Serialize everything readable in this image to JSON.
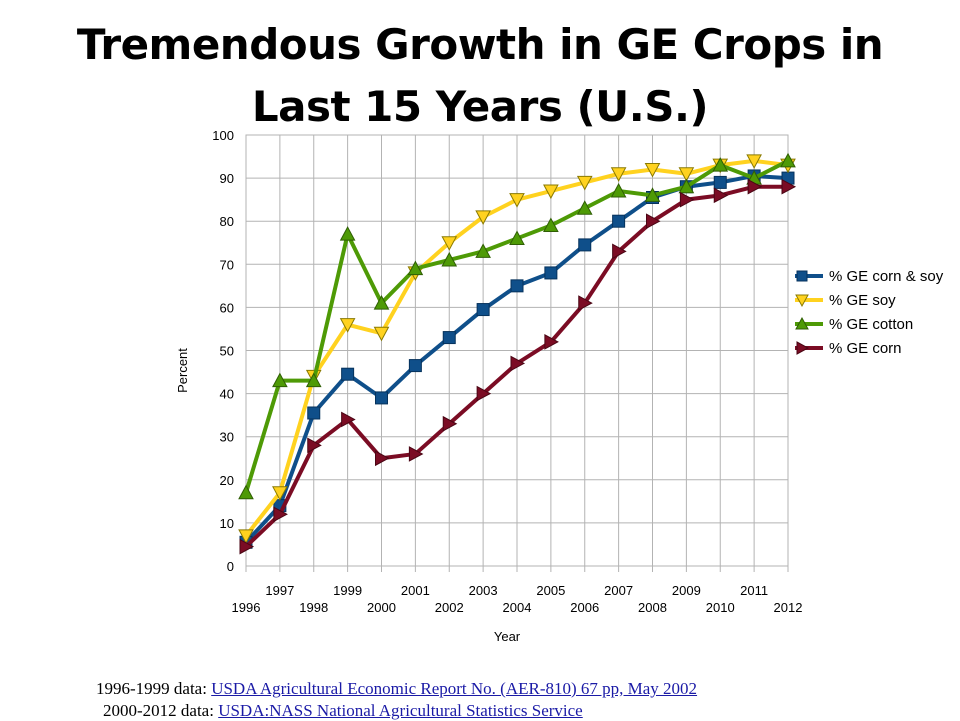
{
  "title": {
    "line1": "Tremendous Growth in GE Crops in",
    "line2": "Last 15 Years (U.S.)"
  },
  "chart_data": {
    "type": "line",
    "xlabel": "Year",
    "ylabel": "Percent",
    "ylim": [
      0,
      100
    ],
    "yticks": [
      0,
      10,
      20,
      30,
      40,
      50,
      60,
      70,
      80,
      90,
      100
    ],
    "x": [
      1996,
      1997,
      1998,
      1999,
      2000,
      2001,
      2002,
      2003,
      2004,
      2005,
      2006,
      2007,
      2008,
      2009,
      2010,
      2011,
      2012
    ],
    "grid": true,
    "legend": "right",
    "series": [
      {
        "name": "% GE corn & soy",
        "color": "#0f4f8a",
        "marker": "square",
        "values": [
          5.5,
          14,
          35.5,
          44.5,
          39,
          46.5,
          53,
          59.5,
          65,
          68,
          74.5,
          80,
          85.5,
          88,
          89,
          90.5,
          90
        ]
      },
      {
        "name": "% GE soy",
        "color": "#ffd21f",
        "marker": "triangle-down",
        "values": [
          7,
          17,
          44,
          56,
          54,
          68,
          75,
          81,
          85,
          87,
          89,
          91,
          92,
          91,
          93,
          94,
          93
        ]
      },
      {
        "name": "% GE cotton",
        "color": "#4e9a06",
        "marker": "triangle-up",
        "values": [
          17,
          43,
          43,
          77,
          61,
          69,
          71,
          73,
          76,
          79,
          83,
          87,
          86,
          88,
          93,
          90,
          94
        ]
      },
      {
        "name": "% GE corn",
        "color": "#7b0c24",
        "marker": "triangle-right",
        "values": [
          4.5,
          12,
          28,
          34,
          25,
          26,
          33,
          40,
          47,
          52,
          61,
          73,
          80,
          85,
          86,
          88,
          88
        ]
      }
    ]
  },
  "sources": {
    "line1_prefix": "1996-1999 data: ",
    "line1_link": "USDA Agricultural Economic Report No. (AER-810) 67 pp, May 2002",
    "line2_prefix": "2000-2012 data: ",
    "line2_link": "USDA:NASS National Agricultural Statistics Service"
  }
}
